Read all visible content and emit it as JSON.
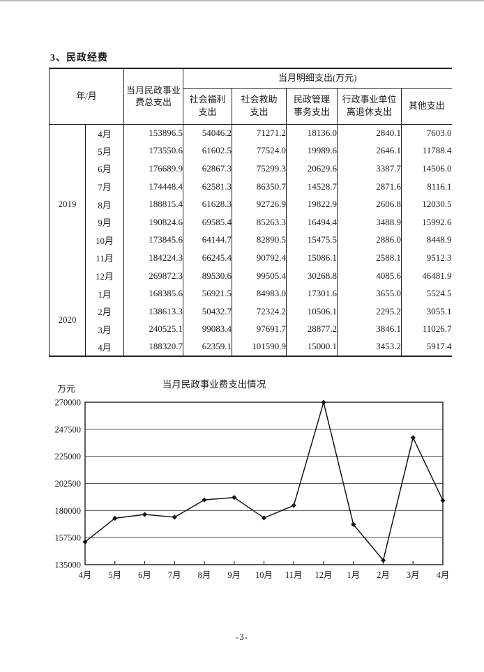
{
  "page": {
    "section_title": "3、民政经费",
    "page_number": "-3-"
  },
  "table": {
    "header": {
      "year_month": "年/月",
      "total": "当月民政事业\n费总支出",
      "detail_span": "当月明细支出(万元)",
      "detail_columns": [
        "社会福利\n支出",
        "社会救助\n支出",
        "民政管理\n事务支出",
        "行政事业单位\n离退休支出",
        "其他支出"
      ]
    },
    "groups": [
      {
        "year": "2019",
        "rows": [
          {
            "month": "4月",
            "values": [
              "153896.5",
              "54046.2",
              "71271.2",
              "18136.0",
              "2840.1",
              "7603.0"
            ]
          },
          {
            "month": "5月",
            "values": [
              "173550.6",
              "61602.5",
              "77524.0",
              "19989.6",
              "2646.1",
              "11788.4"
            ]
          },
          {
            "month": "6月",
            "values": [
              "176689.9",
              "62867.3",
              "75299.3",
              "20629.6",
              "3387.7",
              "14506.0"
            ]
          },
          {
            "month": "7月",
            "values": [
              "174448.4",
              "62581.3",
              "86350.7",
              "14528.7",
              "2871.6",
              "8116.1"
            ]
          },
          {
            "month": "8月",
            "values": [
              "188815.4",
              "61628.3",
              "92726.9",
              "19822.9",
              "2606.8",
              "12030.5"
            ]
          },
          {
            "month": "9月",
            "values": [
              "190824.6",
              "69585.4",
              "85263.3",
              "16494.4",
              "3488.9",
              "15992.6"
            ]
          },
          {
            "month": "10月",
            "values": [
              "173845.6",
              "64144.7",
              "82890.5",
              "15475.5",
              "2886.0",
              "8448.9"
            ]
          },
          {
            "month": "11月",
            "values": [
              "184224.3",
              "66245.4",
              "90792.4",
              "15086.1",
              "2588.1",
              "9512.3"
            ]
          },
          {
            "month": "12月",
            "values": [
              "269872.3",
              "89530.6",
              "99505.4",
              "30268.8",
              "4085.6",
              "46481.9"
            ]
          }
        ]
      },
      {
        "year": "2020",
        "rows": [
          {
            "month": "1月",
            "values": [
              "168385.6",
              "56921.5",
              "84983.0",
              "17301.6",
              "3655.0",
              "5524.5"
            ]
          },
          {
            "month": "2月",
            "values": [
              "138613.3",
              "50432.7",
              "72324.2",
              "10506.1",
              "2295.2",
              "3055.1"
            ]
          },
          {
            "month": "3月",
            "values": [
              "240525.1",
              "99083.4",
              "97691.7",
              "28877.2",
              "3846.1",
              "11026.7"
            ]
          },
          {
            "month": "4月",
            "values": [
              "188320.7",
              "62359.1",
              "101590.9",
              "15000.1",
              "3453.2",
              "5917.4"
            ]
          }
        ]
      }
    ]
  },
  "chart_data": {
    "type": "line",
    "title": "当月民政事业费支出情况",
    "ylabel": "万元",
    "xlabel": "",
    "x": [
      "4月",
      "5月",
      "6月",
      "7月",
      "8月",
      "9月",
      "10月",
      "11月",
      "12月",
      "1月",
      "2月",
      "3月",
      "4月"
    ],
    "series": [
      {
        "name": "当月民政事业费总支出",
        "values": [
          153896.5,
          173550.6,
          176689.9,
          174448.4,
          188815.4,
          190824.6,
          173845.6,
          184224.3,
          269872.3,
          168385.6,
          138613.3,
          240525.1,
          188320.7
        ]
      }
    ],
    "ylim": [
      135000,
      270000
    ],
    "yticks": [
      135000,
      157500,
      180000,
      202500,
      225000,
      247500,
      270000
    ],
    "grid": true,
    "legend": "none",
    "marker": "diamond",
    "line_color": "#151515"
  }
}
